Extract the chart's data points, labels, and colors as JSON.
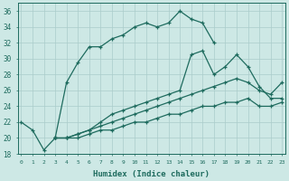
{
  "xlabel": "Humidex (Indice chaleur)",
  "bg_color": "#cde8e5",
  "line_color": "#1e6b5e",
  "grid_color": "#aaccca",
  "xlim": [
    -0.3,
    23.3
  ],
  "ylim": [
    18,
    37
  ],
  "xticks": [
    0,
    1,
    2,
    3,
    4,
    5,
    6,
    7,
    8,
    9,
    10,
    11,
    12,
    13,
    14,
    15,
    16,
    17,
    18,
    19,
    20,
    21,
    22,
    23
  ],
  "yticks": [
    18,
    20,
    22,
    24,
    26,
    28,
    30,
    32,
    34,
    36
  ],
  "lines": [
    {
      "x": [
        0,
        1,
        2,
        3,
        4,
        5,
        6,
        7,
        8,
        9,
        10,
        11,
        12,
        13,
        14,
        15,
        16,
        17
      ],
      "y": [
        22,
        21,
        18.5,
        20,
        27,
        29.5,
        31.5,
        31.5,
        32.5,
        33,
        34,
        34.5,
        34,
        34.5,
        36,
        35,
        34.5,
        32
      ]
    },
    {
      "x": [
        3,
        4,
        5,
        6,
        7,
        8,
        9,
        10,
        11,
        12,
        13,
        14,
        15,
        16,
        17,
        18,
        19,
        20,
        21,
        22,
        23
      ],
      "y": [
        20,
        20,
        20.5,
        21,
        22,
        23,
        23.5,
        24,
        24.5,
        25,
        25.5,
        26,
        30.5,
        31,
        28,
        29,
        30.5,
        29,
        26.5,
        25,
        25
      ]
    },
    {
      "x": [
        3,
        4,
        5,
        6,
        7,
        8,
        9,
        10,
        11,
        12,
        13,
        14,
        15,
        16,
        17,
        18,
        19,
        20,
        21,
        22,
        23
      ],
      "y": [
        20,
        20,
        20.5,
        21,
        21.5,
        22,
        22.5,
        23,
        23.5,
        24,
        24.5,
        25,
        25.5,
        26,
        26.5,
        27,
        27.5,
        27,
        26,
        25.5,
        27
      ]
    },
    {
      "x": [
        3,
        4,
        5,
        6,
        7,
        8,
        9,
        10,
        11,
        12,
        13,
        14,
        15,
        16,
        17,
        18,
        19,
        20,
        21,
        22,
        23
      ],
      "y": [
        20,
        20,
        20,
        20.5,
        21,
        21,
        21.5,
        22,
        22,
        22.5,
        23,
        23,
        23.5,
        24,
        24,
        24.5,
        24.5,
        25,
        24,
        24,
        24.5
      ]
    }
  ]
}
